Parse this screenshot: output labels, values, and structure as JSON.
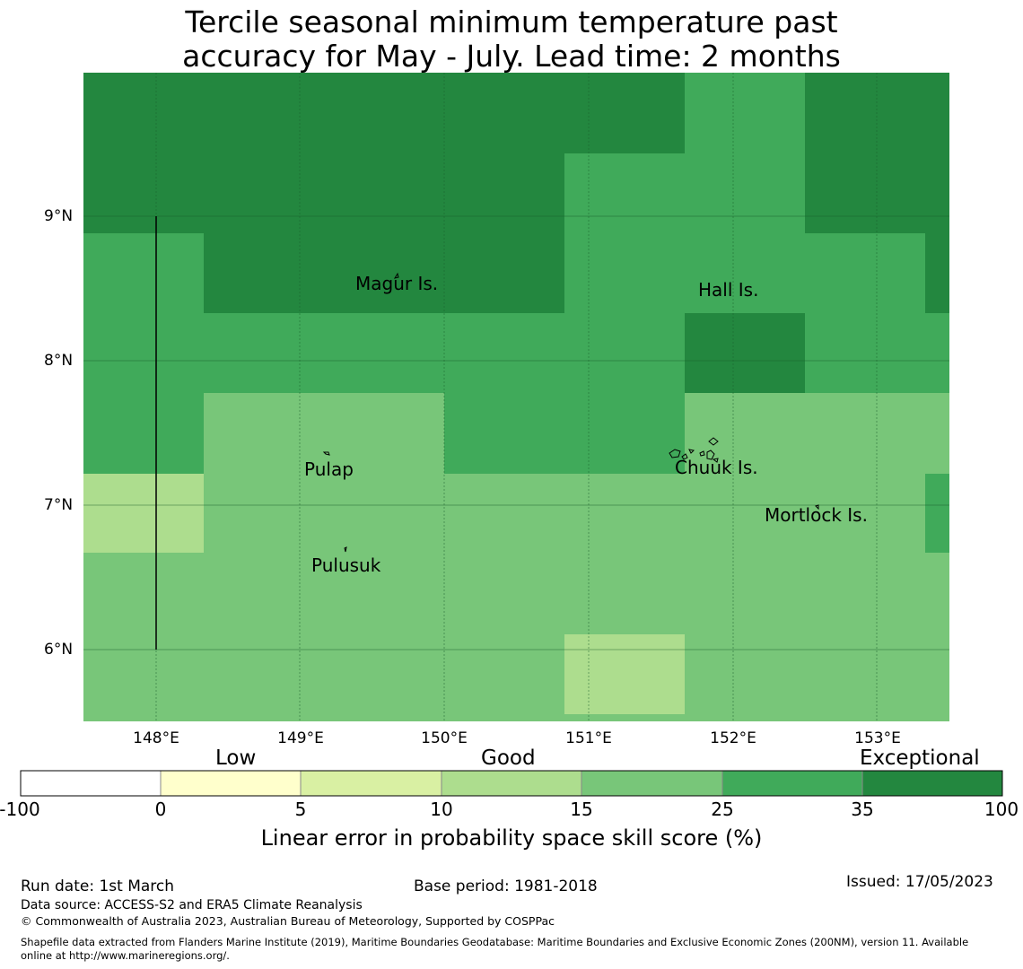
{
  "title": {
    "line1": "Tercile seasonal minimum temperature past",
    "line2": "accuracy for May - July. Lead time: 2 months"
  },
  "map": {
    "colors": {
      "c100": "#23873f",
      "c35": "#40aa5a",
      "c25": "#78c679",
      "c15": "#addd8e",
      "c10": "#d9f0a3",
      "c5": "#ffffcc",
      "c0": "#ffffff"
    },
    "latitudes": [
      "9°N",
      "8°N",
      "7°N",
      "6°N"
    ],
    "longitudes": [
      "148°E",
      "149°E",
      "150°E",
      "151°E",
      "152°E",
      "153°E"
    ],
    "places": {
      "magur": "Magur Is.",
      "hall": "Hall Is.",
      "pulap": "Pulap",
      "chuuk": "Chuuk Is.",
      "mortlock": "Mortlock Is.",
      "pulusuk": "Pulusuk"
    }
  },
  "colorbar": {
    "categories": [
      "Low",
      "Good",
      "Exceptional"
    ],
    "ticks": [
      "-100",
      "0",
      "5",
      "10",
      "15",
      "25",
      "35",
      "100"
    ],
    "label": "Linear error in probability space skill score (%)"
  },
  "footer": {
    "run_date": "Run date: 1st March",
    "base_period": "Base period: 1981-2018",
    "issued": "Issued: 17/05/2023",
    "data_source": "Data source: ACCESS-S2 and ERA5 Climate Reanalysis",
    "copyright": "© Commonwealth of Australia 2023, Australian Bureau of Meteorology, Supported by COSPPac",
    "shapefile_line1": "Shapefile data extracted from Flanders Marine Institute (2019), Maritime Boundaries Geodatabase: Maritime Boundaries and Exclusive Economic Zones (200NM), version 11. Available",
    "shapefile_line2": "online at http://www.marineregions.org/."
  }
}
